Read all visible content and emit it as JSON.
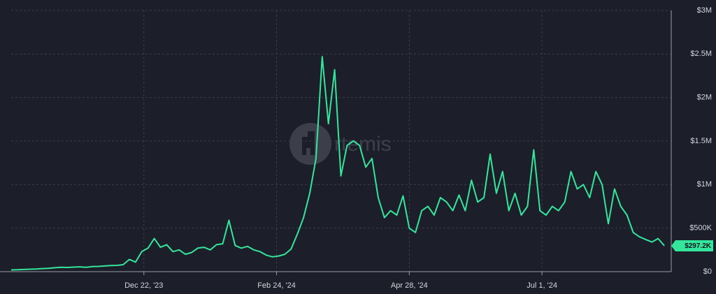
{
  "chart_data": {
    "type": "line",
    "watermark": "rtemis",
    "color": "#34e69b",
    "grid": true,
    "x": [
      "2023-10-19",
      "2023-10-22",
      "2023-10-25",
      "2023-10-28",
      "2023-10-31",
      "2023-11-03",
      "2023-11-06",
      "2023-11-09",
      "2023-11-12",
      "2023-11-15",
      "2023-11-18",
      "2023-11-21",
      "2023-11-24",
      "2023-11-27",
      "2023-11-30",
      "2023-12-03",
      "2023-12-06",
      "2023-12-09",
      "2023-12-12",
      "2023-12-15",
      "2023-12-18",
      "2023-12-21",
      "2023-12-24",
      "2023-12-27",
      "2023-12-30",
      "2024-01-02",
      "2024-01-05",
      "2024-01-08",
      "2024-01-11",
      "2024-01-14",
      "2024-01-17",
      "2024-01-20",
      "2024-01-23",
      "2024-01-26",
      "2024-01-29",
      "2024-02-01",
      "2024-02-04",
      "2024-02-07",
      "2024-02-10",
      "2024-02-13",
      "2024-02-16",
      "2024-02-19",
      "2024-02-22",
      "2024-02-25",
      "2024-02-28",
      "2024-03-02",
      "2024-03-05",
      "2024-03-08",
      "2024-03-11",
      "2024-03-14",
      "2024-03-17",
      "2024-03-20",
      "2024-03-23",
      "2024-03-26",
      "2024-03-29",
      "2024-04-01",
      "2024-04-04",
      "2024-04-07",
      "2024-04-10",
      "2024-04-13",
      "2024-04-16",
      "2024-04-19",
      "2024-04-22",
      "2024-04-25",
      "2024-04-28",
      "2024-05-01",
      "2024-05-04",
      "2024-05-07",
      "2024-05-10",
      "2024-05-13",
      "2024-05-16",
      "2024-05-19",
      "2024-05-22",
      "2024-05-25",
      "2024-05-28",
      "2024-05-31",
      "2024-06-03",
      "2024-06-06",
      "2024-06-09",
      "2024-06-12",
      "2024-06-15",
      "2024-06-18",
      "2024-06-21",
      "2024-06-24",
      "2024-06-27",
      "2024-06-30",
      "2024-07-03",
      "2024-07-06",
      "2024-07-09",
      "2024-07-12",
      "2024-07-15",
      "2024-07-18",
      "2024-07-21",
      "2024-07-24",
      "2024-07-27",
      "2024-07-30",
      "2024-08-02",
      "2024-08-05",
      "2024-08-08",
      "2024-08-11",
      "2024-08-14",
      "2024-08-17",
      "2024-08-20",
      "2024-08-23",
      "2024-08-26",
      "2024-08-29"
    ],
    "values": [
      20000,
      22000,
      25000,
      28000,
      30000,
      35000,
      38000,
      45000,
      50000,
      48000,
      52000,
      55000,
      50000,
      58000,
      60000,
      65000,
      70000,
      72000,
      80000,
      140000,
      110000,
      230000,
      270000,
      380000,
      280000,
      310000,
      230000,
      250000,
      200000,
      220000,
      270000,
      280000,
      250000,
      310000,
      320000,
      590000,
      300000,
      270000,
      290000,
      250000,
      230000,
      190000,
      170000,
      180000,
      200000,
      260000,
      430000,
      620000,
      900000,
      1300000,
      2470000,
      1700000,
      2320000,
      1100000,
      1450000,
      1500000,
      1450000,
      1200000,
      1300000,
      850000,
      620000,
      700000,
      650000,
      870000,
      500000,
      450000,
      700000,
      750000,
      650000,
      850000,
      800000,
      700000,
      880000,
      700000,
      1050000,
      800000,
      850000,
      1350000,
      900000,
      1150000,
      700000,
      900000,
      650000,
      750000,
      1400000,
      700000,
      650000,
      750000,
      700000,
      800000,
      1150000,
      950000,
      1000000,
      850000,
      1150000,
      1000000,
      550000,
      950000,
      750000,
      650000,
      450000,
      400000,
      370000,
      340000,
      380000,
      297200
    ],
    "current_value": {
      "value": 297200,
      "label": "$297.2K"
    },
    "xlim": [
      "2023-10-19",
      "2024-08-31"
    ],
    "xticks": [
      {
        "value": "2023-12-22",
        "label": "Dec 22, '23"
      },
      {
        "value": "2024-02-24",
        "label": "Feb 24, '24"
      },
      {
        "value": "2024-04-28",
        "label": "Apr 28, '24"
      },
      {
        "value": "2024-07-01",
        "label": "Jul 1, '24"
      }
    ],
    "ylim": [
      0,
      3000000
    ],
    "yticks": [
      {
        "value": 0,
        "label": "$0"
      },
      {
        "value": 500000,
        "label": "$500K"
      },
      {
        "value": 1000000,
        "label": "$1M"
      },
      {
        "value": 1500000,
        "label": "$1.5M"
      },
      {
        "value": 2000000,
        "label": "$2M"
      },
      {
        "value": 2500000,
        "label": "$2.5M"
      },
      {
        "value": 3000000,
        "label": "$3M"
      }
    ]
  }
}
